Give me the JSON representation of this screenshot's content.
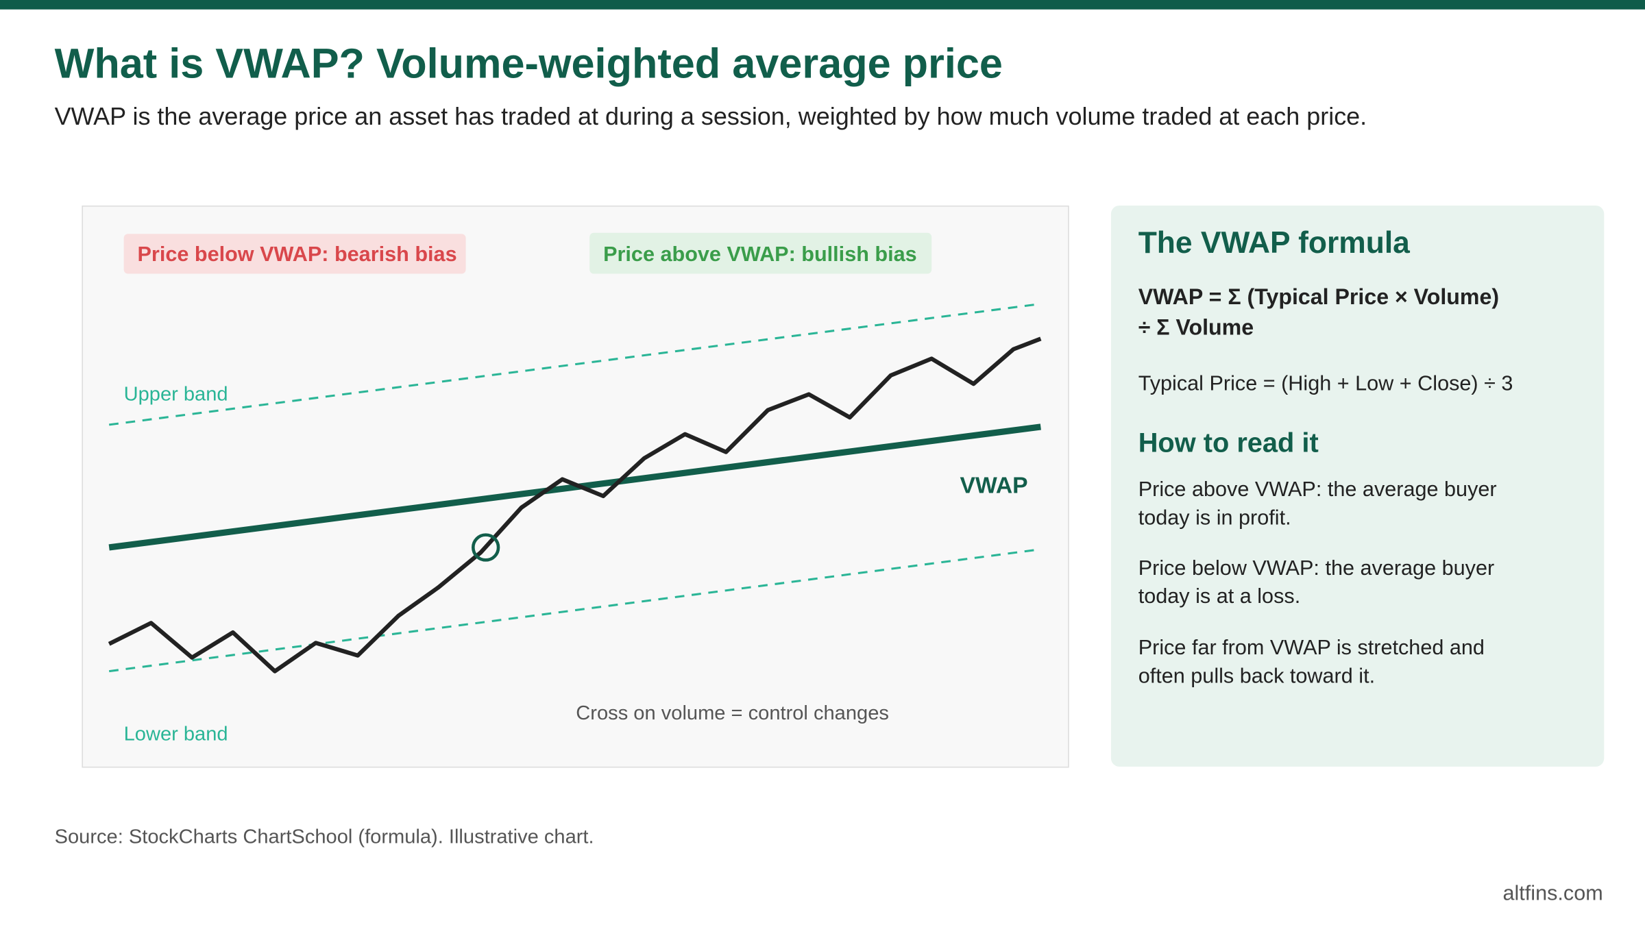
{
  "header": {
    "title": "What is VWAP? Volume-weighted average price",
    "subtitle": "VWAP is the average price an asset has traded at during a session, weighted by how much volume traded at each price."
  },
  "chart": {
    "bearish_label": "Price below VWAP: bearish bias",
    "bullish_label": "Price above VWAP: bullish bias",
    "upper_band": "Upper band",
    "lower_band": "Lower band",
    "vwap_label": "VWAP",
    "cross_note": "Cross on volume = control changes"
  },
  "panel": {
    "title": "The VWAP formula",
    "formula_lines": [
      "VWAP = Σ (Typical Price × Volume)",
      "÷ Σ Volume"
    ],
    "typical_price": "Typical Price = (High + Low + Close) ÷ 3",
    "subtitle": "How to read it",
    "points": [
      [
        "Price above VWAP: the average buyer",
        "today is in profit."
      ],
      [
        "Price below VWAP: the average buyer",
        "today is at a loss."
      ],
      [
        "Price far from VWAP is stretched and",
        "often pulls back toward it."
      ]
    ]
  },
  "footer": {
    "source": "Source: StockCharts ChartSchool (formula). Illustrative chart.",
    "brand": "altfins.com"
  }
}
